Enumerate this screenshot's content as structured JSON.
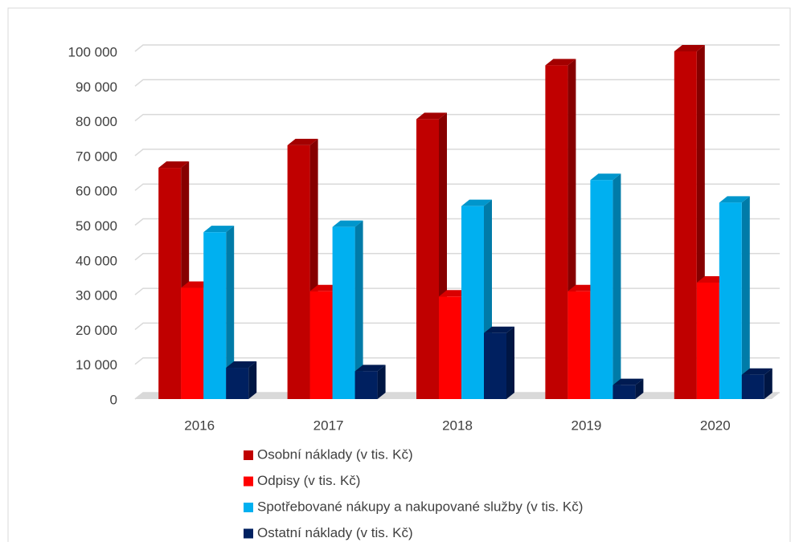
{
  "chart_data": {
    "type": "bar3d",
    "categories": [
      "2016",
      "2017",
      "2018",
      "2019",
      "2020"
    ],
    "series": [
      {
        "name": "Osobní náklady (v tis. Kč)",
        "color": "#c00000",
        "values": [
          66500,
          73000,
          80500,
          96000,
          100000
        ]
      },
      {
        "name": "Odpisy (v tis. Kč)",
        "color": "#ff0000",
        "values": [
          32000,
          31000,
          29500,
          31000,
          33500
        ]
      },
      {
        "name": "Spotřebované nákupy a nakupované služby (v tis. Kč)",
        "color": "#00b0f0",
        "values": [
          48000,
          49500,
          55500,
          63000,
          56500
        ]
      },
      {
        "name": "Ostatní náklady (v tis. Kč)",
        "color": "#002060",
        "values": [
          9000,
          8000,
          19000,
          4000,
          7000
        ]
      }
    ],
    "ylim": [
      0,
      100000
    ],
    "yticks": [
      0,
      {
        "value": 10000,
        "label": "10 000"
      },
      {
        "value": 20000,
        "label": "20 000"
      },
      {
        "value": 30000,
        "label": "30 000"
      },
      {
        "value": 40000,
        "label": "40 000"
      },
      {
        "value": 50000,
        "label": "50 000"
      },
      {
        "value": 60000,
        "label": "60 000"
      },
      {
        "value": 70000,
        "label": "70 000"
      },
      {
        "value": 80000,
        "label": "80 000"
      },
      {
        "value": 90000,
        "label": "90 000"
      },
      {
        "value": 100000,
        "label": "100 000"
      }
    ],
    "grid": true,
    "legend": "bottom"
  }
}
